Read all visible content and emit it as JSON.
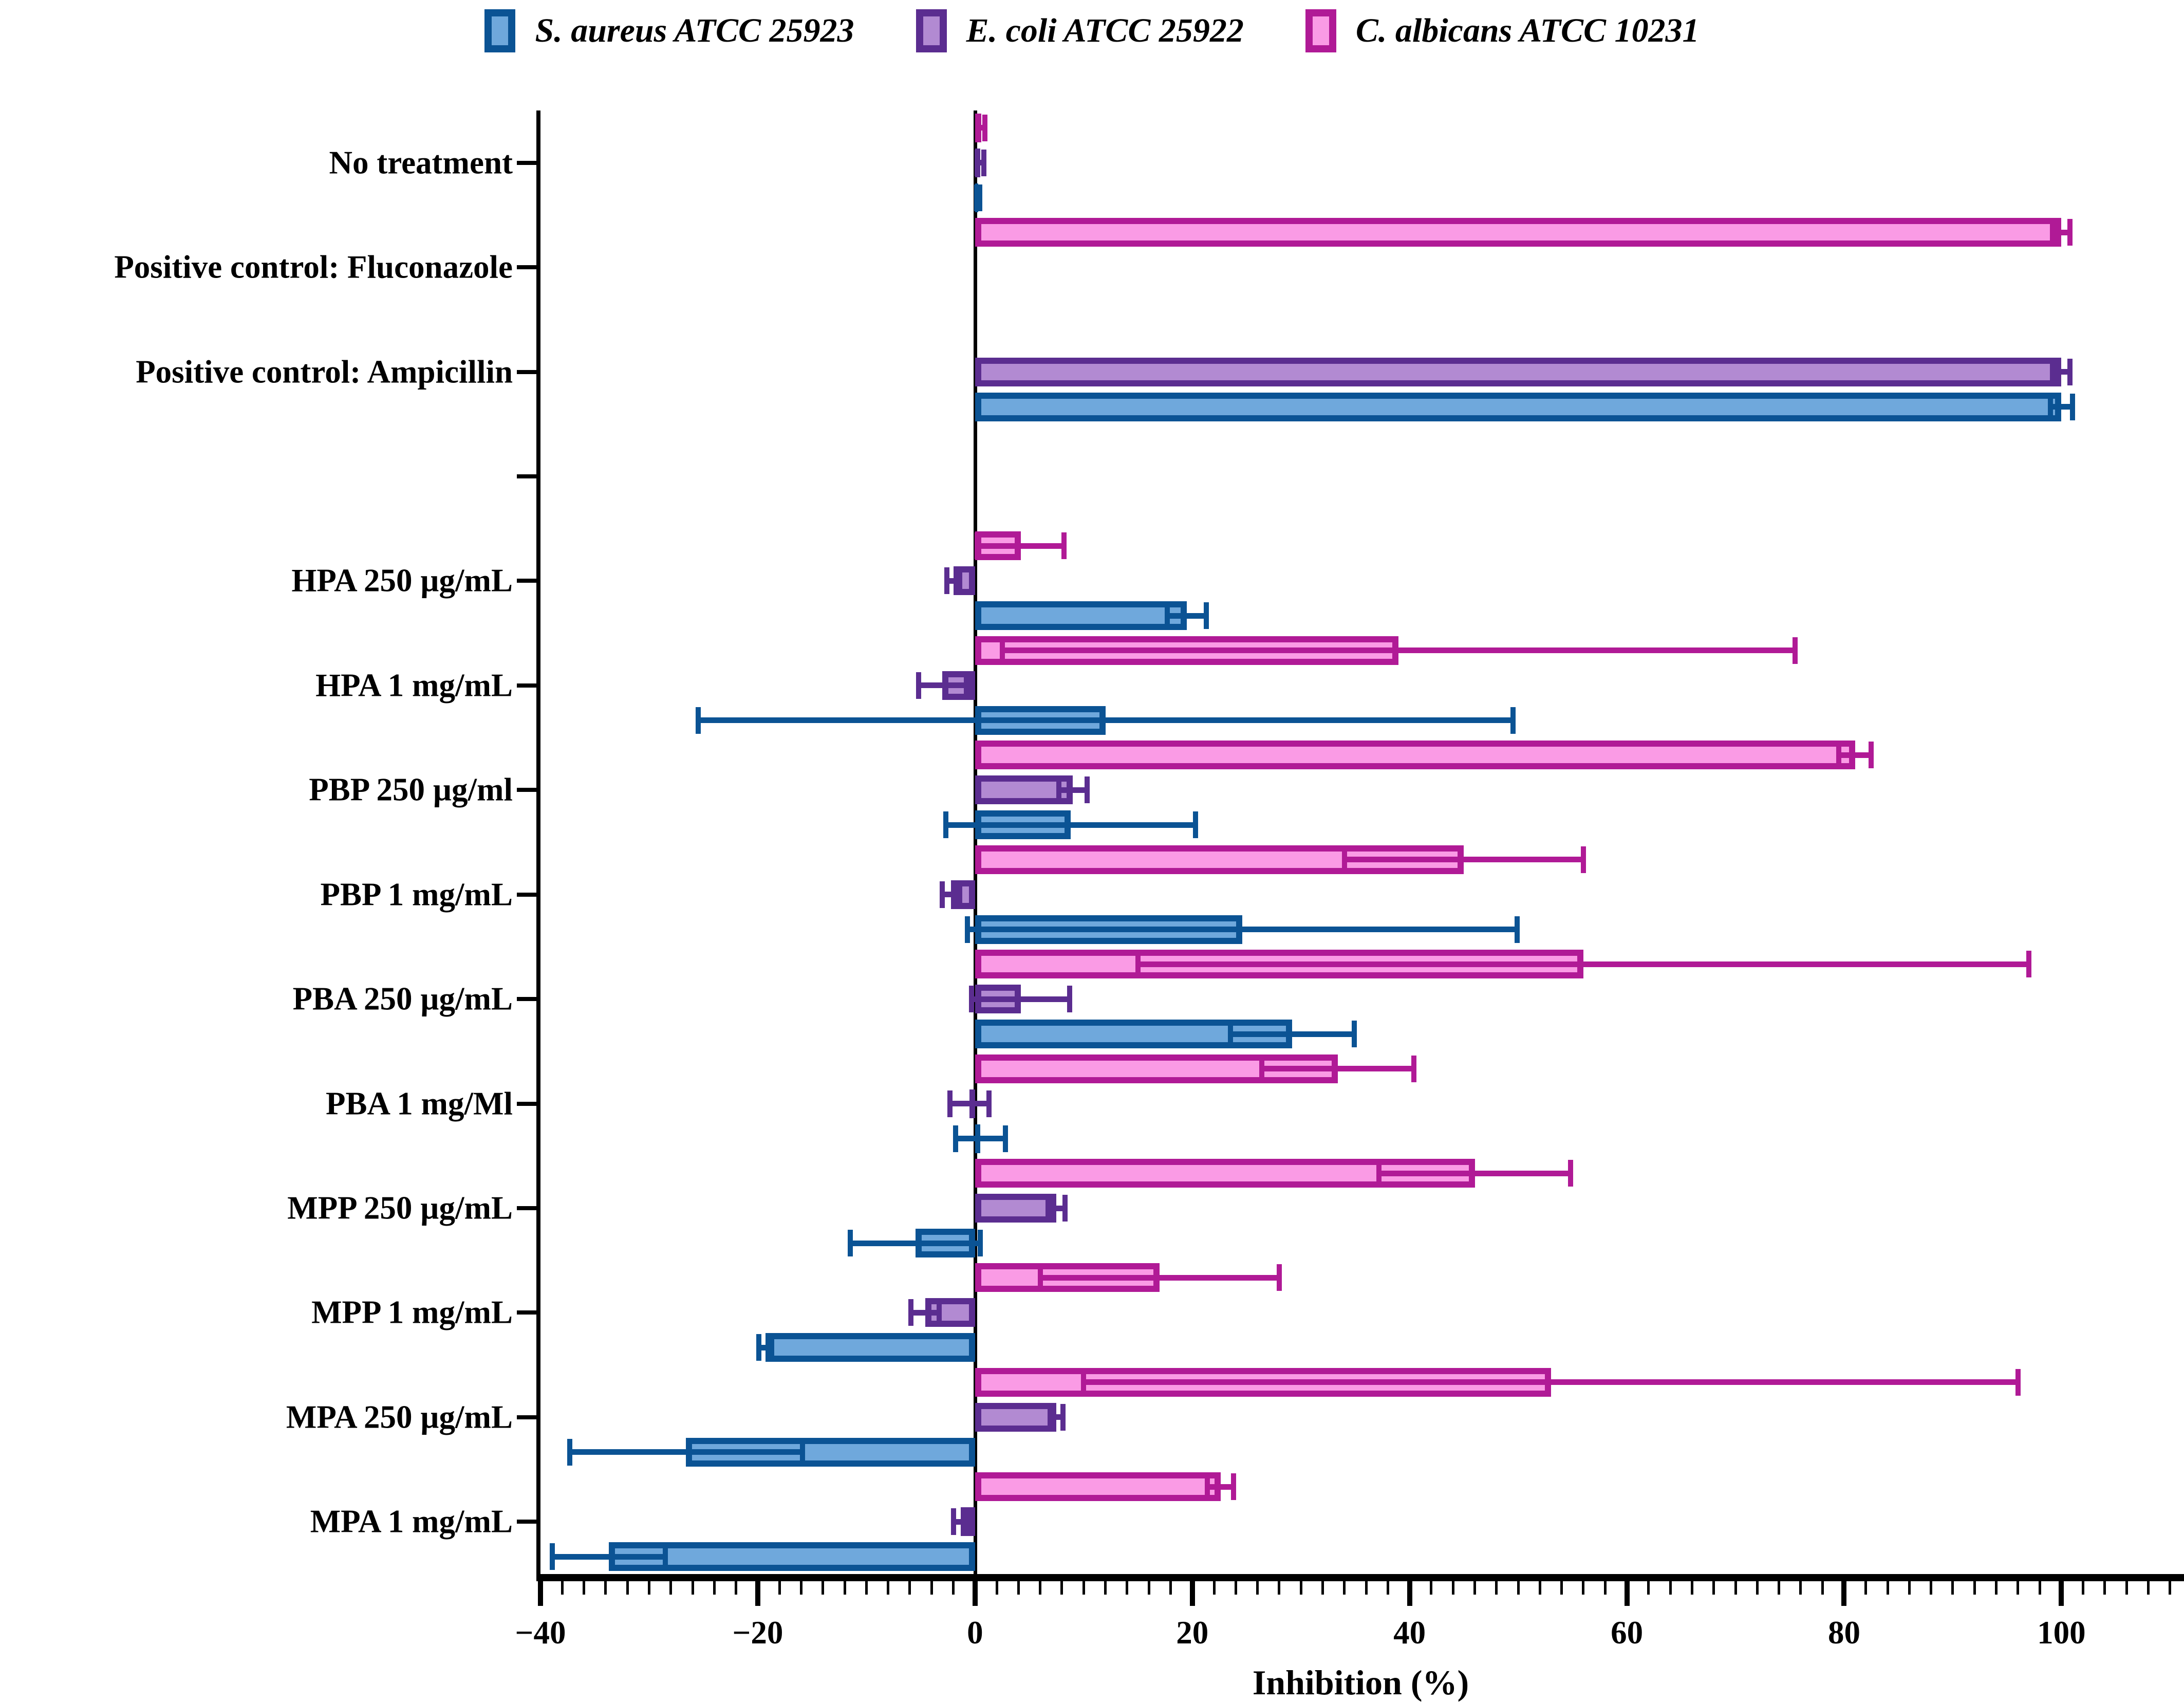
{
  "legend": {
    "items": [
      {
        "label": "S. aureus ATCC 25923",
        "color_dark": "#0B5394",
        "color_light": "#6FA8DC"
      },
      {
        "label": "E. coli ATCC 25922",
        "color_dark": "#5B2D90",
        "color_light": "#B28AD2"
      },
      {
        "label": "C. albicans ATCC 10231",
        "color_dark": "#B01A96",
        "color_light": "#FA9BE5"
      }
    ]
  },
  "chart_data": {
    "type": "bar",
    "orientation": "horizontal",
    "title": "",
    "xlabel": "Inhibition (%)",
    "ylabel": "",
    "xlim": [
      -40,
      111
    ],
    "x_major_ticks": [
      -40,
      -20,
      0,
      20,
      40,
      60,
      80,
      100
    ],
    "x_minor_step": 2,
    "grid": "off",
    "legend_position": "top",
    "error_bars": "symmetric, capped, drawn in series dark color",
    "categories": [
      "No treatment",
      "Positive control: Fluconazole",
      "Positive control: Ampicillin",
      "",
      "HPA 250 µg/mL",
      "HPA 1 mg/mL",
      "PBP 250 µg/ml",
      "PBP 1 mg/mL",
      "PBA 250 µg/mL",
      "PBA 1 mg/Ml",
      "MPP 250 µg/mL",
      "MPP 1 mg/mL",
      "MPA 250 µg/mL",
      "MPA 1 mg/mL"
    ],
    "series": [
      {
        "name": "C. albicans ATCC 10231",
        "color_dark": "#B01A96",
        "color_light": "#FA9BE5",
        "values": [
          0.6,
          100,
          null,
          null,
          4.2,
          39,
          81,
          45,
          56,
          33.4,
          46,
          17,
          53,
          22.6
        ],
        "errors": [
          0.3,
          0.8,
          null,
          null,
          4.0,
          36.5,
          1.5,
          11,
          41,
          7,
          8.8,
          11,
          43,
          1.2
        ]
      },
      {
        "name": "E. coli ATCC 25922",
        "color_dark": "#5B2D90",
        "color_light": "#B28AD2",
        "values": [
          0.5,
          null,
          100,
          null,
          -2.0,
          -3.0,
          9.0,
          -2.2,
          4.2,
          -0.5,
          7.5,
          -4.6,
          7.5,
          -1.3
        ],
        "errors": [
          0.3,
          null,
          0.8,
          null,
          0.6,
          2.2,
          1.3,
          0.8,
          4.5,
          1.8,
          0.8,
          1.3,
          0.6,
          0.7
        ]
      },
      {
        "name": "S. aureus ATCC 25923",
        "color_dark": "#0B5394",
        "color_light": "#6FA8DC",
        "values": [
          0.3,
          null,
          100,
          null,
          19.5,
          12,
          8.8,
          24.6,
          29.2,
          0.5,
          -5.5,
          -19.3,
          -26.6,
          -33.7
        ],
        "errors": [
          0.15,
          null,
          1.0,
          null,
          1.8,
          37.5,
          11.5,
          25.3,
          5.7,
          2.3,
          6.0,
          0.6,
          10.7,
          5.2
        ]
      }
    ]
  }
}
